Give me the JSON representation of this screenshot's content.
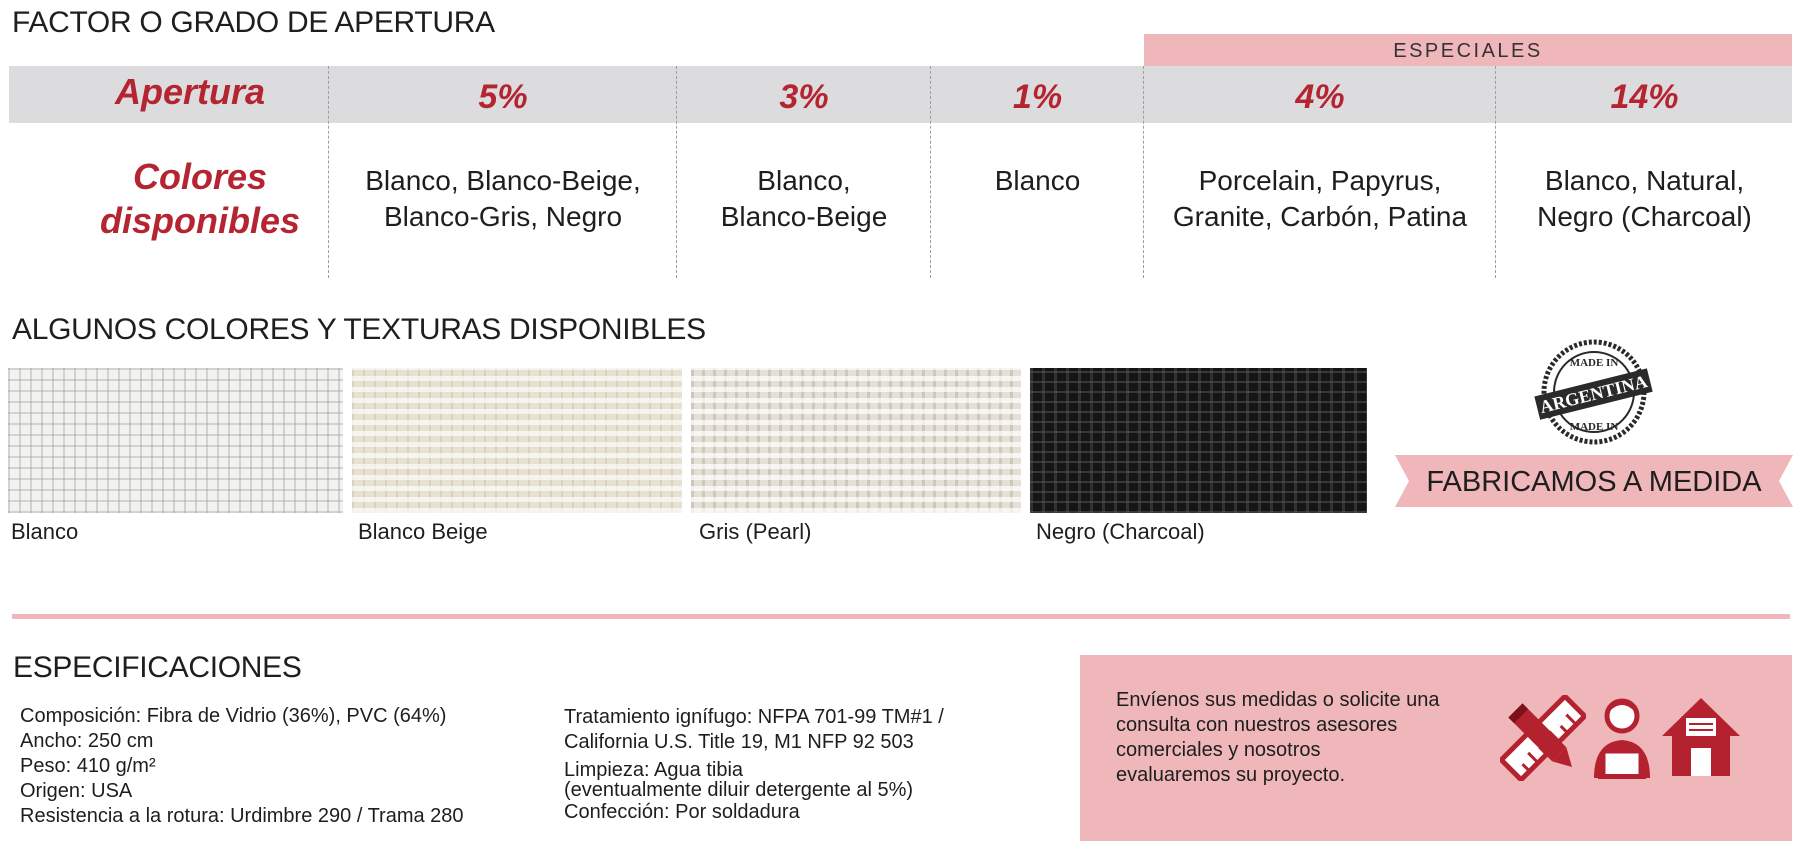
{
  "apertura_section": {
    "title": "FACTOR O GRADO DE APERTURA",
    "especiales_label": "ESPECIALES",
    "header_label": "Apertura",
    "colors_label": [
      "Colores",
      "disponibles"
    ],
    "columns": [
      {
        "pct": "5%",
        "colors": [
          "Blanco, Blanco-Beige,",
          "Blanco-Gris, Negro"
        ]
      },
      {
        "pct": "3%",
        "colors": [
          "Blanco,",
          "Blanco-Beige"
        ]
      },
      {
        "pct": "1%",
        "colors": [
          "Blanco"
        ]
      },
      {
        "pct": "4%",
        "colors": [
          "Porcelain, Papyrus,",
          "Granite, Carbón, Patina"
        ]
      },
      {
        "pct": "14%",
        "colors": [
          "Blanco, Natural,",
          "Negro (Charcoal)"
        ]
      }
    ]
  },
  "textures_section": {
    "title": "ALGUNOS COLORES Y TEXTURAS DISPONIBLES",
    "swatches": [
      {
        "label": "Blanco",
        "color": "#f2f2f0"
      },
      {
        "label": "Blanco Beige",
        "color": "#e7e1d2"
      },
      {
        "label": "Gris (Pearl)",
        "color": "#e4e0d6"
      },
      {
        "label": "Negro (Charcoal)",
        "color": "#151515"
      }
    ]
  },
  "seal": {
    "top_text": "MADE IN",
    "center_text": "ARGENTINA",
    "bottom_text": "MADE IN"
  },
  "ribbon": {
    "text": "FABRICAMOS A MEDIDA"
  },
  "specs": {
    "title": "ESPECIFICACIONES",
    "left": [
      "Composición: Fibra de Vidrio (36%), PVC (64%)",
      "Ancho: 250 cm",
      "Peso: 410 g/m²",
      "Origen: USA",
      "Resistencia a la rotura: Urdimbre 290 / Trama 280"
    ],
    "right": [
      "Tratamiento ignífugo: NFPA 701-99 TM#1 /",
      "California U.S. Title 19, M1 NFP 92 503",
      "Limpieza: Agua tibia",
      "(eventualmente diluir detergente al 5%)",
      "Confección: Por soldadura"
    ]
  },
  "contact": {
    "lines": [
      "Envíenos sus medidas o solicite una",
      "consulta con nuestros asesores",
      "comerciales y nosotros",
      "evaluaremos su proyecto."
    ],
    "icons": [
      "ruler-pencil-icon",
      "advisor-icon",
      "house-icon"
    ]
  },
  "colors": {
    "accent_red": "#b52431",
    "pink": "#f0b7bb",
    "grey_band": "#dcdcde",
    "icon_red": "#b3222e"
  }
}
